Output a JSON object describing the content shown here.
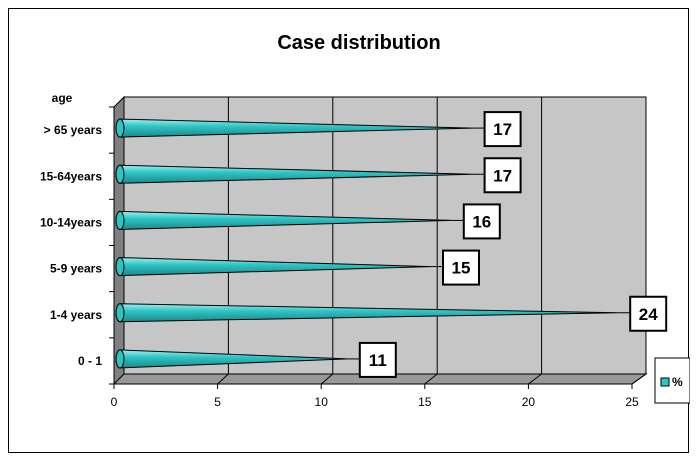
{
  "chart_data": {
    "type": "bar",
    "orientation": "horizontal",
    "style": "3d-cone",
    "title": "Case distribution",
    "ylabel": "age",
    "xlabel": "",
    "categories": [
      "0 - 1",
      "1-4  years",
      "5-9 years",
      "10-14years",
      "15-64years",
      "> 65 years"
    ],
    "series": [
      {
        "name": "%",
        "values": [
          11,
          24,
          15,
          16,
          17,
          17
        ],
        "color": "#2fc4c4"
      }
    ],
    "data_labels": [
      "11",
      "24",
      "15",
      "16",
      "17",
      "17"
    ],
    "xlim": [
      0,
      25
    ],
    "x_ticks": [
      "0",
      "5",
      "10",
      "15",
      "20",
      "25"
    ],
    "grid": true,
    "legend_position": "right",
    "colors": {
      "plot_back": "#c6c6c6",
      "side_wall": "#808080",
      "floor": "#999999"
    }
  }
}
